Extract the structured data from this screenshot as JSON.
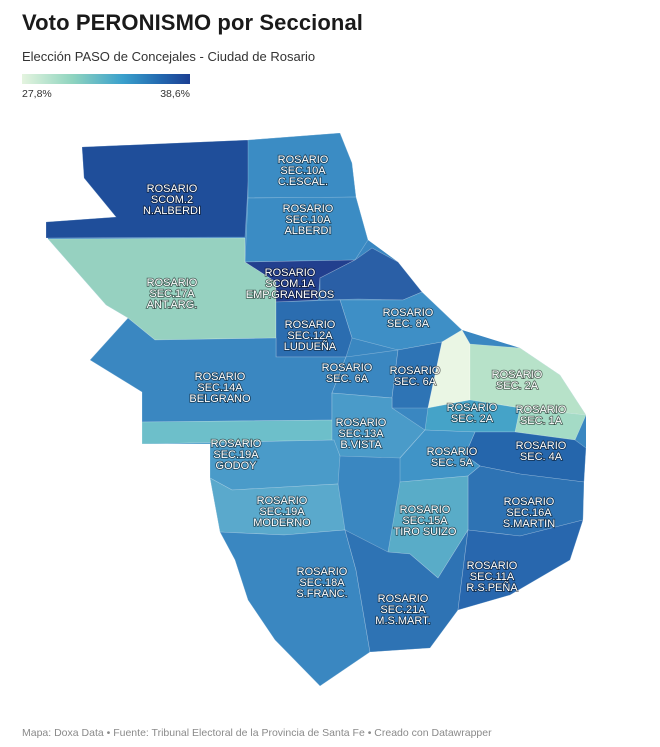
{
  "title": "Voto PERONISMO por Seccional",
  "subtitle": "Elección PASO de Concejales - Ciudad de Rosario",
  "legend": {
    "min": "27,8%",
    "max": "38,6%",
    "colors": [
      "#e4f4df",
      "#8fd4bf",
      "#3aa0cc",
      "#2369b0",
      "#1c3f93"
    ]
  },
  "footer": "Mapa: Doxa Data • Fuente: Tribunal Electoral de la Provincia de Santa Fe • Creado con Datawrapper",
  "zones": [
    {
      "id": "scom2",
      "lines": [
        "ROSARIO",
        "SCOM.2",
        "N.ALBERDI"
      ],
      "color": "#1f4e9a"
    },
    {
      "id": "sec10a-cescal",
      "lines": [
        "ROSARIO",
        "SEC.10A",
        "C.ESCAL."
      ],
      "color": "#3b8cc4"
    },
    {
      "id": "sec10a-alberdi",
      "lines": [
        "ROSARIO",
        "SEC.10A",
        "ALBERDI"
      ],
      "color": "#3b8cc4"
    },
    {
      "id": "sec17a",
      "lines": [
        "ROSARIO",
        "SEC.17A",
        "ANT.ARG."
      ],
      "color": "#96d1c0"
    },
    {
      "id": "scom1a",
      "lines": [
        "ROSARIO",
        "SCOM.1A",
        "EMP.GRANEROS"
      ],
      "color": "#223f8e"
    },
    {
      "id": "ne-dark",
      "lines": [],
      "color": "#2a5fa6"
    },
    {
      "id": "sec8a",
      "lines": [
        "ROSARIO",
        "SEC. 8A"
      ],
      "color": "#3e8fc6"
    },
    {
      "id": "sec12a",
      "lines": [
        "ROSARIO",
        "SEC.12A",
        "LUDUEÑA"
      ],
      "color": "#2b6db0"
    },
    {
      "id": "sec14a",
      "lines": [
        "ROSARIO",
        "SEC.14A",
        "BELGRANO"
      ],
      "color": "#3a87c1"
    },
    {
      "id": "sec6a-w",
      "lines": [
        "ROSARIO",
        "SEC. 6A"
      ],
      "color": "#3a87c1"
    },
    {
      "id": "sec6a-e",
      "lines": [
        "ROSARIO",
        "SEC. 6A"
      ],
      "color": "#2e74b5"
    },
    {
      "id": "sec1a-pale",
      "lines": [],
      "color": "#eaf6e4"
    },
    {
      "id": "sec2a-n",
      "lines": [
        "ROSARIO",
        "SEC. 2A"
      ],
      "color": "#b7e2c9"
    },
    {
      "id": "sec1a",
      "lines": [
        "ROSARIO",
        "SEC. 1A"
      ],
      "color": "#a4dbc6"
    },
    {
      "id": "sec2a-s",
      "lines": [
        "ROSARIO",
        "SEC. 2A"
      ],
      "color": "#45a3c8"
    },
    {
      "id": "sec14a-strip",
      "lines": [],
      "color": "#6dbfca"
    },
    {
      "id": "sec13a",
      "lines": [
        "ROSARIO",
        "SEC.13A",
        "B.VISTA"
      ],
      "color": "#4a9bc9"
    },
    {
      "id": "sec4a",
      "lines": [
        "ROSARIO",
        "SEC. 4A"
      ],
      "color": "#2566ac"
    },
    {
      "id": "sec19a-godoy",
      "lines": [
        "ROSARIO",
        "SEC.19A",
        "GODOY"
      ],
      "color": "#4a9bc9"
    },
    {
      "id": "sec5a",
      "lines": [
        "ROSARIO",
        "SEC. 5A"
      ],
      "color": "#4094c7"
    },
    {
      "id": "sec16a",
      "lines": [
        "ROSARIO",
        "SEC.16A",
        "S.MARTIN"
      ],
      "color": "#2e73b4"
    },
    {
      "id": "sec19a-moderno",
      "lines": [
        "ROSARIO",
        "SEC.19A",
        "MODERNO"
      ],
      "color": "#5aa9cc"
    },
    {
      "id": "sec15a",
      "lines": [
        "ROSARIO",
        "SEC.15A",
        "TIRO SUIZO"
      ],
      "color": "#59acc8"
    },
    {
      "id": "sec18a",
      "lines": [
        "ROSARIO",
        "SEC.18A",
        "S.FRANC."
      ],
      "color": "#3a87c1"
    },
    {
      "id": "sec21a",
      "lines": [
        "ROSARIO",
        "SEC.21A",
        "M.S.MART."
      ],
      "color": "#2e73b4"
    },
    {
      "id": "sec11a",
      "lines": [
        "ROSARIO",
        "SEC.11A",
        "R.S.PEÑA"
      ],
      "color": "#2867ae"
    }
  ]
}
